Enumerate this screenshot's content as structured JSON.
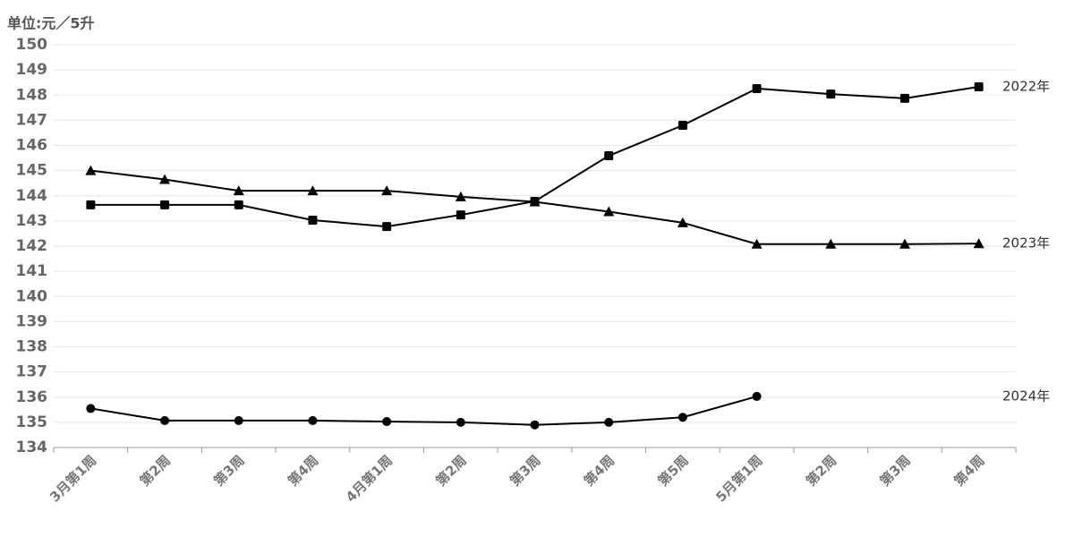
{
  "chart_data": {
    "type": "line",
    "title": "单位:元／5升",
    "categories": [
      "3月第1周",
      "第2周",
      "第3周",
      "第4周",
      "4月第1周",
      "第2周",
      "第3周",
      "第4周",
      "第5周",
      "5月第1周",
      "第2周",
      "第3周",
      "第4周"
    ],
    "series": [
      {
        "name": "2022年",
        "color": "#000000",
        "marker": "square",
        "values": [
          143.64,
          143.64,
          143.64,
          143.03,
          142.78,
          143.24,
          143.78,
          145.59,
          146.8,
          148.26,
          148.04,
          147.87,
          148.33
        ]
      },
      {
        "name": "2023年",
        "color": "#000000",
        "marker": "triangle",
        "values": [
          145.0,
          144.65,
          144.2,
          144.2,
          144.2,
          143.96,
          143.76,
          143.37,
          142.93,
          142.08,
          142.08,
          142.08,
          142.1
        ]
      },
      {
        "name": "2024年",
        "color": "#000000",
        "marker": "circle",
        "values": [
          135.55,
          135.07,
          135.07,
          135.07,
          135.03,
          135.0,
          134.9,
          135.0,
          135.2,
          136.03,
          null,
          null,
          null
        ]
      }
    ],
    "ylim": [
      134,
      150
    ],
    "yticks": [
      134,
      135,
      136,
      137,
      138,
      139,
      140,
      141,
      142,
      143,
      144,
      145,
      146,
      147,
      148,
      149,
      150
    ],
    "grid": true
  }
}
